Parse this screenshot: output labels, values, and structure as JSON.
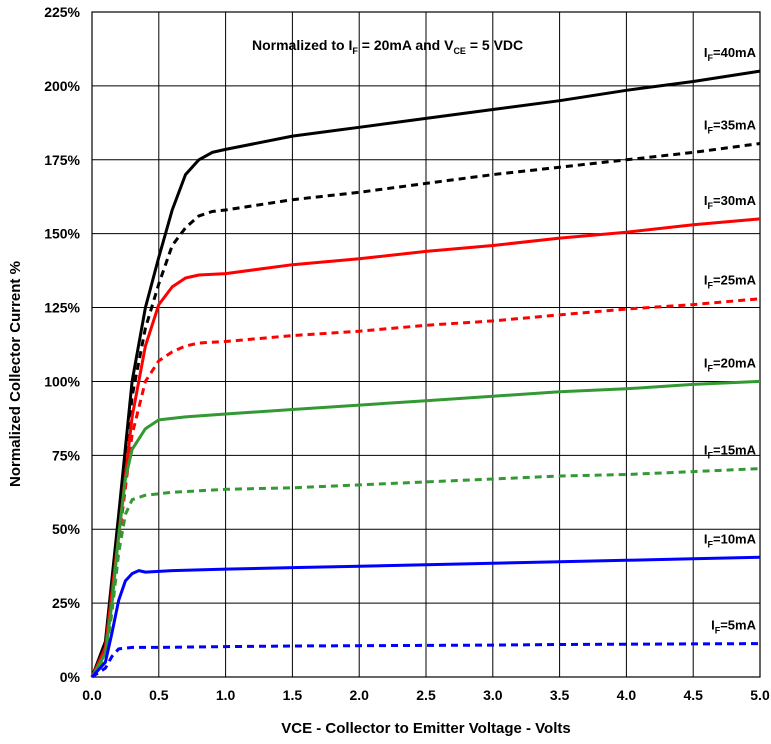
{
  "chart_data": {
    "type": "line",
    "title": "",
    "note": {
      "prefix": "Normalized to I",
      "sub1": "F",
      "middle": " = 20mA and V",
      "sub2": "CE",
      "suffix": " = 5 VDC"
    },
    "xlabel": "VCE - Collector to Emitter Voltage - Volts",
    "ylabel": "Normalized Collector Current %",
    "xlim": [
      0,
      5
    ],
    "ylim": [
      0,
      225
    ],
    "x_ticks": [
      "0.0",
      "0.5",
      "1.0",
      "1.5",
      "2.0",
      "2.5",
      "3.0",
      "3.5",
      "4.0",
      "4.5",
      "5.0"
    ],
    "y_ticks": [
      "0%",
      "25%",
      "50%",
      "75%",
      "100%",
      "125%",
      "150%",
      "175%",
      "200%",
      "225%"
    ],
    "grid": true,
    "series": [
      {
        "label_main": "I",
        "label_sub": "F",
        "label_rest": "=40mA",
        "color": "#000000",
        "dash": "solid",
        "points": [
          [
            0,
            0
          ],
          [
            0.1,
            12
          ],
          [
            0.2,
            55
          ],
          [
            0.3,
            100
          ],
          [
            0.4,
            125
          ],
          [
            0.5,
            142
          ],
          [
            0.6,
            158
          ],
          [
            0.7,
            170
          ],
          [
            0.8,
            175
          ],
          [
            0.9,
            177.5
          ],
          [
            1.0,
            178.5
          ],
          [
            1.5,
            183
          ],
          [
            2.0,
            186
          ],
          [
            2.5,
            189
          ],
          [
            3.0,
            192
          ],
          [
            3.5,
            195
          ],
          [
            4.0,
            198.5
          ],
          [
            4.5,
            201.5
          ],
          [
            5.0,
            205
          ]
        ]
      },
      {
        "label_main": "I",
        "label_sub": "F",
        "label_rest": "=35mA",
        "color": "#000000",
        "dash": "dashed",
        "points": [
          [
            0,
            0
          ],
          [
            0.1,
            10
          ],
          [
            0.2,
            50
          ],
          [
            0.3,
            95
          ],
          [
            0.4,
            118
          ],
          [
            0.5,
            133
          ],
          [
            0.6,
            146
          ],
          [
            0.7,
            152
          ],
          [
            0.8,
            156
          ],
          [
            0.9,
            157.5
          ],
          [
            1.0,
            158
          ],
          [
            1.5,
            161.5
          ],
          [
            2.0,
            164
          ],
          [
            2.5,
            167
          ],
          [
            3.0,
            170
          ],
          [
            3.5,
            172.5
          ],
          [
            4.0,
            175
          ],
          [
            4.5,
            177.5
          ],
          [
            5.0,
            180.5
          ]
        ]
      },
      {
        "label_main": "I",
        "label_sub": "F",
        "label_rest": "=30mA",
        "color": "#ff0000",
        "dash": "solid",
        "points": [
          [
            0,
            0
          ],
          [
            0.1,
            10
          ],
          [
            0.2,
            48
          ],
          [
            0.3,
            88
          ],
          [
            0.4,
            112
          ],
          [
            0.5,
            126
          ],
          [
            0.6,
            132
          ],
          [
            0.7,
            135
          ],
          [
            0.8,
            136
          ],
          [
            1.0,
            136.5
          ],
          [
            1.5,
            139.5
          ],
          [
            2.0,
            141.5
          ],
          [
            2.5,
            144
          ],
          [
            3.0,
            146
          ],
          [
            3.5,
            148.5
          ],
          [
            4.0,
            150.5
          ],
          [
            4.5,
            153
          ],
          [
            5.0,
            155
          ]
        ]
      },
      {
        "label_main": "I",
        "label_sub": "F",
        "label_rest": "=25mA",
        "color": "#ff0000",
        "dash": "dashed",
        "points": [
          [
            0,
            0
          ],
          [
            0.1,
            9
          ],
          [
            0.2,
            46
          ],
          [
            0.3,
            82
          ],
          [
            0.4,
            100
          ],
          [
            0.5,
            107
          ],
          [
            0.6,
            110
          ],
          [
            0.7,
            112
          ],
          [
            0.8,
            113
          ],
          [
            1.0,
            113.5
          ],
          [
            1.5,
            115.5
          ],
          [
            2.0,
            117
          ],
          [
            2.5,
            119
          ],
          [
            3.0,
            120.5
          ],
          [
            3.5,
            122.5
          ],
          [
            4.0,
            124.5
          ],
          [
            4.5,
            126
          ],
          [
            5.0,
            128
          ]
        ]
      },
      {
        "label_main": "I",
        "label_sub": "F",
        "label_rest": "=20mA",
        "color": "#339933",
        "dash": "solid",
        "points": [
          [
            0,
            0
          ],
          [
            0.1,
            8
          ],
          [
            0.15,
            25
          ],
          [
            0.2,
            48
          ],
          [
            0.25,
            67
          ],
          [
            0.3,
            77
          ],
          [
            0.4,
            84
          ],
          [
            0.5,
            87
          ],
          [
            0.7,
            88
          ],
          [
            1.0,
            89
          ],
          [
            1.5,
            90.5
          ],
          [
            2.0,
            92
          ],
          [
            2.5,
            93.5
          ],
          [
            3.0,
            95
          ],
          [
            3.5,
            96.5
          ],
          [
            4.0,
            97.5
          ],
          [
            4.5,
            99
          ],
          [
            5.0,
            100
          ]
        ]
      },
      {
        "label_main": "I",
        "label_sub": "F",
        "label_rest": "=15mA",
        "color": "#339933",
        "dash": "dashed",
        "points": [
          [
            0,
            0
          ],
          [
            0.1,
            7
          ],
          [
            0.15,
            22
          ],
          [
            0.2,
            42
          ],
          [
            0.25,
            55
          ],
          [
            0.3,
            60
          ],
          [
            0.4,
            61.5
          ],
          [
            0.6,
            62.5
          ],
          [
            1.0,
            63.5
          ],
          [
            1.5,
            64
          ],
          [
            2.0,
            65
          ],
          [
            2.5,
            66
          ],
          [
            3.0,
            67
          ],
          [
            3.5,
            68
          ],
          [
            4.0,
            68.5
          ],
          [
            4.5,
            69.5
          ],
          [
            5.0,
            70.5
          ]
        ]
      },
      {
        "label_main": "I",
        "label_sub": "F",
        "label_rest": "=10mA",
        "color": "#0000ff",
        "dash": "solid",
        "points": [
          [
            0,
            0
          ],
          [
            0.1,
            5
          ],
          [
            0.15,
            15
          ],
          [
            0.2,
            26
          ],
          [
            0.25,
            32.5
          ],
          [
            0.3,
            35
          ],
          [
            0.35,
            36
          ],
          [
            0.4,
            35.5
          ],
          [
            0.6,
            36
          ],
          [
            1.0,
            36.5
          ],
          [
            1.5,
            37
          ],
          [
            2.0,
            37.5
          ],
          [
            2.5,
            38
          ],
          [
            3.0,
            38.5
          ],
          [
            3.5,
            39
          ],
          [
            4.0,
            39.5
          ],
          [
            4.5,
            40
          ],
          [
            5.0,
            40.5
          ]
        ]
      },
      {
        "label_main": "I",
        "label_sub": "F",
        "label_rest": "=5mA",
        "color": "#0000ff",
        "dash": "dashed",
        "points": [
          [
            0,
            0
          ],
          [
            0.1,
            3
          ],
          [
            0.15,
            7
          ],
          [
            0.2,
            9.5
          ],
          [
            0.3,
            10
          ],
          [
            0.5,
            10
          ],
          [
            1.0,
            10.3
          ],
          [
            1.5,
            10.5
          ],
          [
            2.0,
            10.6
          ],
          [
            2.5,
            10.7
          ],
          [
            3.0,
            10.8
          ],
          [
            3.5,
            11
          ],
          [
            4.0,
            11.1
          ],
          [
            4.5,
            11.2
          ],
          [
            5.0,
            11.3
          ]
        ]
      }
    ]
  }
}
